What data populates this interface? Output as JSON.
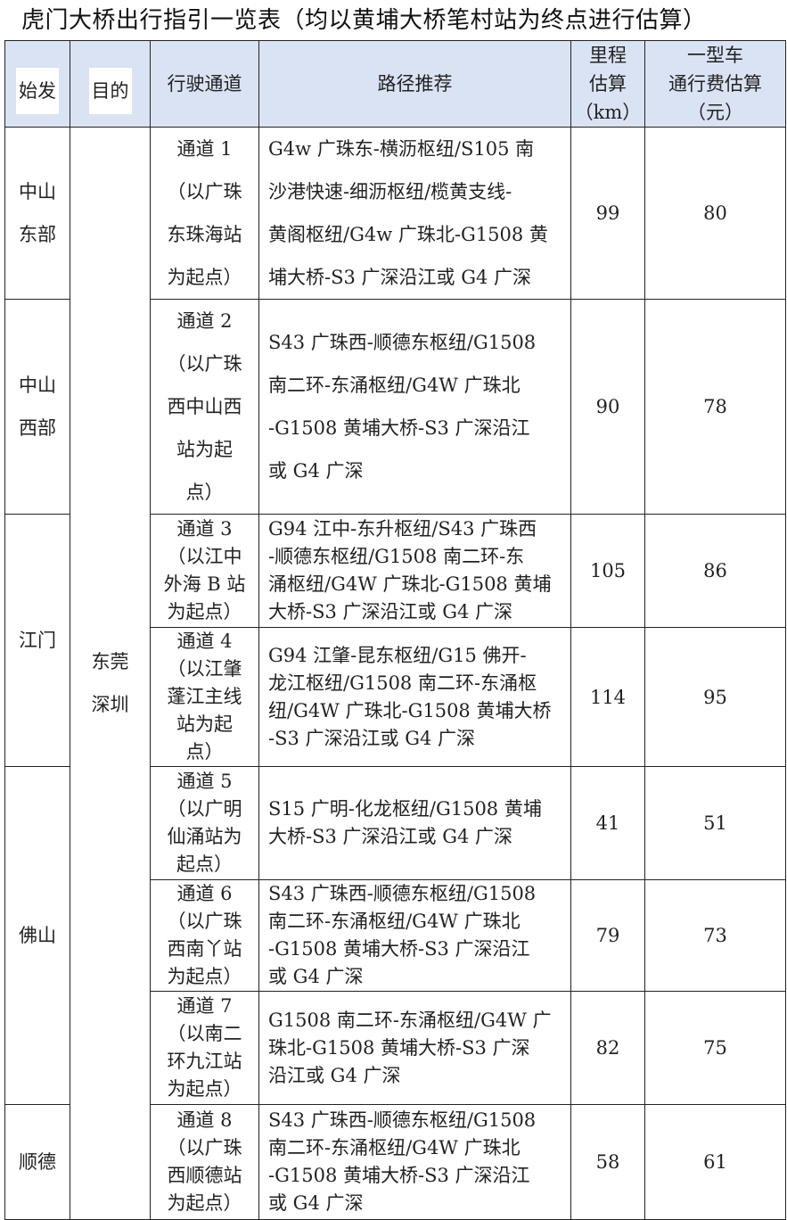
{
  "title": "虎门大桥出行指引一览表（均以黄埔大桥笔村站为终点进行估算）",
  "header": {
    "origin": "始发",
    "destination": "目的",
    "channel": "行驶通道",
    "route": "路径推荐",
    "distance": [
      "里程",
      "估算",
      "（km）"
    ],
    "toll": [
      "一型车",
      "通行费估算",
      "（元）"
    ]
  },
  "header_colors": {
    "background": "#dae3f3"
  },
  "destination": [
    "东莞",
    "深圳"
  ],
  "rows": [
    {
      "origin": [
        "中山",
        "东部"
      ],
      "channel": [
        "通道 1",
        "（以广珠",
        "东珠海站",
        "为起点）"
      ],
      "route": [
        "G4w 广珠东-横沥枢纽/S105 南",
        "沙港快速-细沥枢纽/榄黄支线-",
        "黄阁枢纽/G4w 广珠北-G1508 黄",
        "埔大桥-S3 广深沿江或 G4 广深"
      ],
      "distance": "99",
      "toll": "80"
    },
    {
      "origin": [
        "中山",
        "西部"
      ],
      "channel": [
        "通道 2",
        "（以广珠",
        "西中山西",
        "站为起",
        "点）"
      ],
      "route": [
        "S43 广珠西-顺德东枢纽/G1508",
        "南二环-东涌枢纽/G4W 广珠北",
        "-G1508 黄埔大桥-S3 广深沿江",
        "或 G4 广深"
      ],
      "distance": "90",
      "toll": "78"
    },
    {
      "origin": [
        "江门"
      ],
      "channel": [
        "通道 3",
        "（以江中",
        "外海 B 站",
        "为起点）"
      ],
      "route": [
        "G94 江中-东升枢纽/S43 广珠西",
        "-顺德东枢纽/G1508 南二环-东",
        "涌枢纽/G4W 广珠北-G1508 黄埔",
        "大桥-S3 广深沿江或 G4 广深"
      ],
      "distance": "105",
      "toll": "86"
    },
    {
      "channel": [
        "通道 4",
        "（以江肇",
        "蓬江主线",
        "站为起",
        "点）"
      ],
      "route": [
        "G94 江肇-昆东枢纽/G15 佛开-",
        "龙江枢纽/G1508 南二环-东涌枢",
        "纽/G4W 广珠北-G1508 黄埔大桥",
        "-S3 广深沿江或 G4 广深"
      ],
      "distance": "114",
      "toll": "95"
    },
    {
      "origin": [
        "佛山"
      ],
      "channel": [
        "通道 5",
        "（以广明",
        "仙涌站为",
        "起点）"
      ],
      "route": [
        "S15 广明-化龙枢纽/G1508 黄埔",
        "大桥-S3 广深沿江或 G4 广深"
      ],
      "distance": "41",
      "toll": "51"
    },
    {
      "channel": [
        "通道 6",
        "（以广珠",
        "西南丫站",
        "为起点）"
      ],
      "route": [
        "S43 广珠西-顺德东枢纽/G1508",
        "南二环-东涌枢纽/G4W 广珠北",
        "-G1508 黄埔大桥-S3 广深沿江",
        "或 G4 广深"
      ],
      "distance": "79",
      "toll": "73"
    },
    {
      "channel": [
        "通道 7",
        "（以南二",
        "环九江站",
        "为起点）"
      ],
      "route": [
        "G1508 南二环-东涌枢纽/G4W 广",
        "珠北-G1508 黄埔大桥-S3 广深",
        "沿江或 G4 广深"
      ],
      "distance": "82",
      "toll": "75"
    },
    {
      "origin": [
        "顺德"
      ],
      "channel": [
        "通道 8",
        "（以广珠",
        "西顺德站",
        "为起点）"
      ],
      "route": [
        "S43 广珠西-顺德东枢纽/G1508",
        "南二环-东涌枢纽/G4W 广珠北",
        "-G1508 黄埔大桥-S3 广深沿江",
        "或 G4 广深"
      ],
      "distance": "58",
      "toll": "61"
    }
  ]
}
